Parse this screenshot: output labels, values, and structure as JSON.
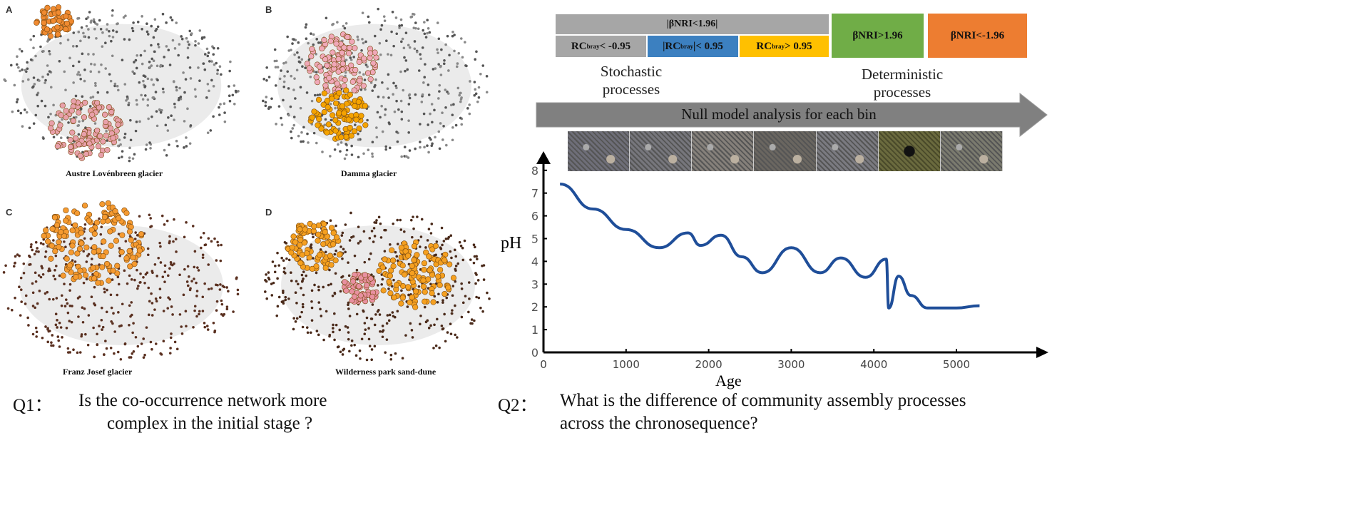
{
  "networks": [
    {
      "letter": "A",
      "caption": "Austre Lovénbreen glacier"
    },
    {
      "letter": "B",
      "caption": "Damma glacier"
    },
    {
      "letter": "C",
      "caption": "Franz Josef glacier"
    },
    {
      "letter": "D",
      "caption": "Wilderness park sand-dune"
    }
  ],
  "questions": {
    "q1_prefix": "Q1：",
    "q1_line1": "Is the co-occurrence network more",
    "q1_line2": "complex in the initial stage ?",
    "q2_prefix": "Q2：",
    "q2_line1": "What is the difference of community assembly processes",
    "q2_line2": "across the chronosequence?"
  },
  "legend": {
    "bnri_low": "|βNRI<1.96|",
    "rc_neg": "RC",
    "rc_neg_sub": "bray",
    "rc_neg_rest": "< -0.95",
    "rc_mid_pre": "|RC",
    "rc_mid_sub": "bray",
    "rc_mid_rest": "|< 0.95",
    "rc_pos": "RC",
    "rc_pos_sub": "bray",
    "rc_pos_rest": "> 0.95",
    "bnri_high": "βNRI>1.96",
    "bnri_neg": "βNRI<-1.96",
    "stochastic": "Stochastic processes",
    "deterministic": "Deterministic processes",
    "arrow_label": "Null model analysis for each bin",
    "colors": {
      "grey": "#a6a6a6",
      "blue": "#3c80c0",
      "yellow": "#ffc000",
      "green": "#70ad47",
      "orange": "#ed7d31",
      "arrow": "#808080"
    }
  },
  "chart_data": {
    "type": "line",
    "xlabel": "Age",
    "ylabel": "pH",
    "xlim": [
      0,
      6000
    ],
    "ylim": [
      0,
      8.5
    ],
    "xticks": [
      0,
      1000,
      2000,
      3000,
      4000,
      5000
    ],
    "yticks": [
      0,
      1,
      2,
      3,
      4,
      5,
      6,
      7,
      8
    ],
    "grid": false,
    "line_color": "#1f4e99",
    "series": [
      {
        "x": [
          200,
          600,
          1000,
          1400,
          1750,
          1900,
          2150,
          2400,
          2650,
          3000,
          3350,
          3600,
          3900,
          4150,
          4180,
          4300,
          4450,
          4650,
          5000,
          5280
        ],
        "y": [
          7.4,
          6.3,
          5.4,
          4.6,
          5.25,
          4.7,
          5.15,
          4.2,
          3.5,
          4.6,
          3.5,
          4.15,
          3.3,
          4.1,
          1.95,
          3.35,
          2.5,
          1.95,
          1.95,
          2.05
        ]
      }
    ]
  }
}
